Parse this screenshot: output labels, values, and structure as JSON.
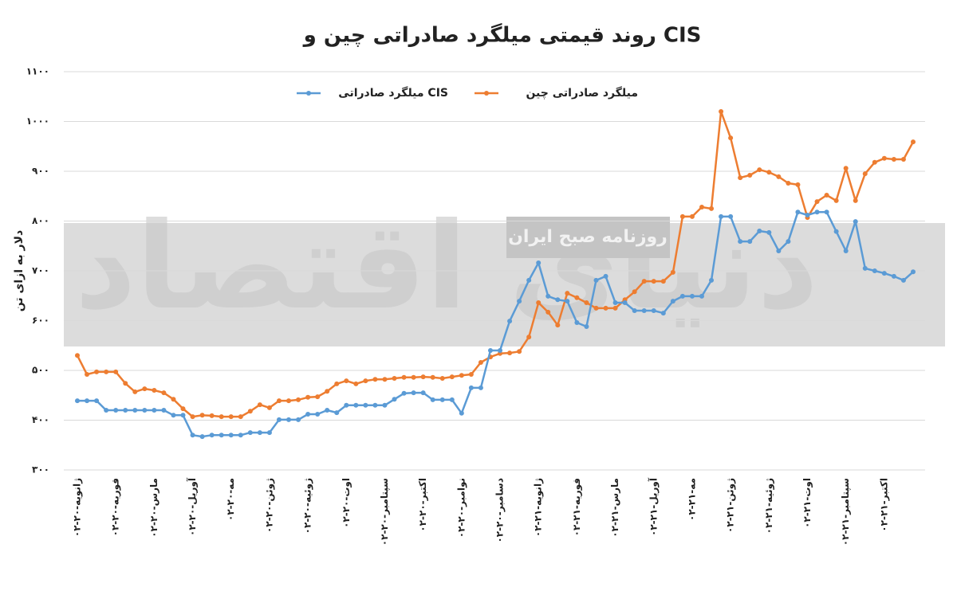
{
  "chart_data": {
    "type": "line",
    "title": "روند قیمتی میلگرد صادراتی چین و CIS",
    "y_label": "دلار به ازای تن",
    "watermark": "دنیای اقتصاد",
    "watermark_sub": "روزنامه صبح ایران",
    "categories": [
      "۰۲-ژانویه-۲۰",
      null,
      null,
      null,
      "۰۲-فوریه-۲۰",
      null,
      null,
      null,
      "۰۲-مارس-۲۰",
      null,
      null,
      null,
      "۰۲-آوریل-۲۰",
      null,
      null,
      null,
      "۰۲-مه-۲۰",
      null,
      null,
      null,
      "۰۲-ژوئن-۲۰",
      null,
      null,
      null,
      "۰۲-ژوئیه-۲۰",
      null,
      null,
      null,
      "۰۲-اوت-۲۰",
      null,
      null,
      null,
      "۰۲-سپتامبر-۲۰",
      null,
      null,
      null,
      "۰۲-اکتبر-۲۰",
      null,
      null,
      null,
      "۰۲-نوامبر-۲۰",
      null,
      null,
      null,
      "۰۲-دسامبر-۲۰",
      null,
      null,
      null,
      "۰۲-ژانویه-۲۱",
      null,
      null,
      null,
      "۰۲-فوریه-۲۱",
      null,
      null,
      null,
      "۰۲-مارس-۲۱",
      null,
      null,
      null,
      "۰۲-آوریل-۲۱",
      null,
      null,
      null,
      "۰۲-مه-۲۱",
      null,
      null,
      null,
      "۰۲-ژوئن-۲۱",
      null,
      null,
      null,
      "۰۲-ژوئیه-۲۱",
      null,
      null,
      null,
      "۰۲-اوت-۲۱",
      null,
      null,
      null,
      "۰۲-سپتامبر-۲۱",
      null,
      null,
      null,
      "۰۲-اکتبر-۲۱",
      null,
      null,
      null
    ],
    "series": [
      {
        "name": "میلگرد صادراتی چین",
        "color": "#ED7D31",
        "values": [
          530,
          492,
          497,
          497,
          497,
          474,
          457,
          463,
          460,
          455,
          442,
          423,
          407,
          410,
          409,
          407,
          407,
          407,
          418,
          431,
          425,
          439,
          439,
          441,
          446,
          447,
          458,
          473,
          479,
          473,
          479,
          482,
          482,
          484,
          486,
          486,
          487,
          486,
          484,
          487,
          490,
          492,
          516,
          527,
          534,
          535,
          538,
          567,
          636,
          617,
          591,
          655,
          646,
          636,
          625,
          625,
          625,
          642,
          658,
          679,
          679,
          679,
          697,
          809,
          809,
          828,
          825,
          1020,
          967,
          887,
          892,
          903,
          898,
          889,
          876,
          873,
          807,
          839,
          852,
          841,
          906,
          841,
          895,
          918,
          926,
          924,
          924,
          959
        ]
      },
      {
        "name": "میلگرد صادراتی CIS",
        "color": "#5B9BD5",
        "values": [
          439,
          439,
          439,
          420,
          420,
          420,
          420,
          420,
          420,
          420,
          410,
          410,
          370,
          367,
          370,
          370,
          370,
          370,
          375,
          375,
          375,
          401,
          401,
          401,
          412,
          412,
          420,
          415,
          430,
          430,
          430,
          430,
          430,
          442,
          454,
          455,
          455,
          441,
          441,
          441,
          414,
          465,
          465,
          540,
          540,
          599,
          639,
          681,
          716,
          649,
          642,
          639,
          596,
          588,
          681,
          689,
          636,
          636,
          620,
          620,
          620,
          615,
          639,
          649,
          649,
          649,
          681,
          809,
          809,
          759,
          759,
          780,
          777,
          740,
          759,
          818,
          812,
          818,
          818,
          779,
          740,
          799,
          705,
          700,
          695,
          689,
          681,
          698
        ]
      }
    ],
    "ylim": [
      300,
      1100
    ],
    "yticks": [
      {
        "value": 300,
        "label": "۳۰۰"
      },
      {
        "value": 400,
        "label": "۴۰۰"
      },
      {
        "value": 500,
        "label": "۵۰۰"
      },
      {
        "value": 600,
        "label": "۶۰۰"
      },
      {
        "value": 700,
        "label": "۷۰۰"
      },
      {
        "value": 800,
        "label": "۸۰۰"
      },
      {
        "value": 900,
        "label": "۹۰۰"
      },
      {
        "value": 1000,
        "label": "۱۰۰۰"
      },
      {
        "value": 1100,
        "label": "۱۱۰۰"
      }
    ],
    "grid": true
  }
}
